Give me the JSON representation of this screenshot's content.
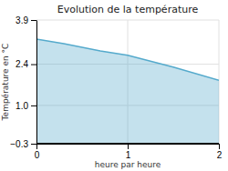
{
  "chart_data": {
    "type": "area",
    "title": "Evolution de la température",
    "xlabel": "heure par heure",
    "ylabel": "Température en °C",
    "x": [
      0,
      0.3,
      0.7,
      1.0,
      1.5,
      2.0
    ],
    "values": [
      3.25,
      3.1,
      2.85,
      2.7,
      2.3,
      1.85
    ],
    "baseline": -0.3,
    "color": "#55aacc",
    "xlim": [
      0,
      2
    ],
    "xticks": [
      0,
      1,
      2
    ],
    "ylim": [
      -0.3,
      3.9
    ],
    "yticks": [
      {
        "value": -0.3,
        "label": "−0.3"
      },
      {
        "value": 1.0,
        "label": "1.0"
      },
      2.4,
      3.9
    ],
    "grid": true
  }
}
